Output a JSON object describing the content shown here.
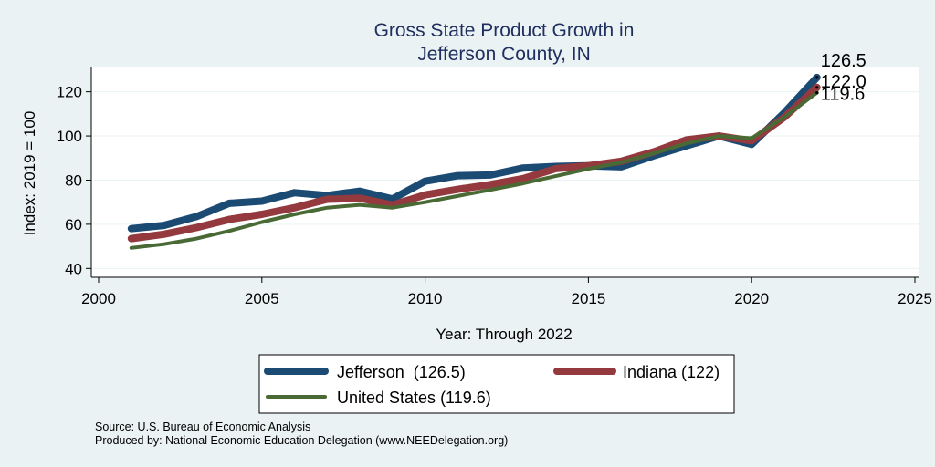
{
  "chart_data": {
    "type": "line",
    "title": [
      "Gross State Product Growth in",
      "Jefferson County, IN"
    ],
    "xlabel": "Year: Through 2022",
    "ylabel": "Index: 2019 = 100",
    "xlim": [
      2000,
      2025
    ],
    "ylim": [
      36,
      131
    ],
    "xticks": [
      2000,
      2005,
      2010,
      2015,
      2020,
      2025
    ],
    "yticks": [
      40,
      60,
      80,
      100,
      120
    ],
    "grid": true,
    "x": [
      2001,
      2002,
      2003,
      2004,
      2005,
      2006,
      2007,
      2008,
      2009,
      2010,
      2011,
      2012,
      2013,
      2014,
      2015,
      2016,
      2017,
      2018,
      2019,
      2020,
      2021,
      2022
    ],
    "series": [
      {
        "name": "Jefferson",
        "legend": "Jefferson  (126.5)",
        "color": "#1b4a73",
        "values": [
          58,
          59.5,
          63.5,
          69.5,
          70.5,
          74.3,
          73,
          75,
          71.5,
          79.5,
          82,
          82.3,
          85.5,
          86.2,
          86.5,
          86,
          91,
          95.5,
          100,
          96.2,
          110.5,
          126.5
        ],
        "end_label": "126.5"
      },
      {
        "name": "Indiana",
        "legend": "Indiana (122)",
        "color": "#943a3e",
        "values": [
          53.5,
          55.5,
          58.5,
          62.2,
          64.5,
          67.5,
          71.3,
          71.8,
          68.7,
          73.3,
          75.8,
          78,
          80.7,
          85.2,
          86.5,
          88.5,
          92.8,
          98.2,
          100,
          97.8,
          108.5,
          122
        ],
        "end_label": "122.0"
      },
      {
        "name": "United States",
        "legend": "United States (119.6)",
        "color": "#4a6a35",
        "values": [
          49.3,
          51,
          53.5,
          57,
          61,
          64.5,
          67.5,
          68.8,
          67.5,
          70,
          72.8,
          75.6,
          78.5,
          81.8,
          85.1,
          88,
          92.1,
          96.6,
          100,
          99,
          108.5,
          119.6
        ],
        "end_label": "119.6"
      }
    ],
    "notes": [
      "Source: U.S. Bureau of Economic Analysis",
      "Produced by: National Economic Education Delegation (www.NEEDelegation.org)"
    ]
  }
}
